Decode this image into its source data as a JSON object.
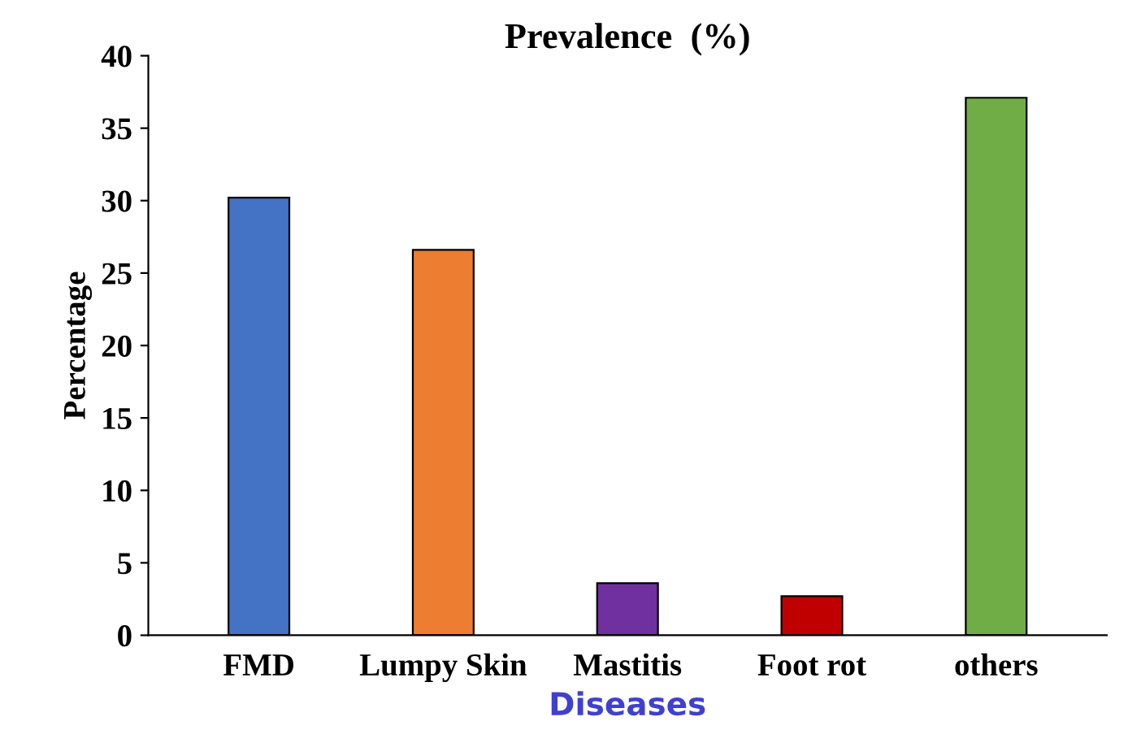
{
  "chart_data": {
    "type": "bar",
    "title": "Prevalence  (%)",
    "xlabel": "Diseases",
    "ylabel": "Percentage",
    "categories": [
      "FMD",
      "Lumpy Skin",
      "Mastitis",
      "Foot rot",
      "others"
    ],
    "values": [
      30.2,
      26.6,
      3.6,
      2.7,
      37.1
    ],
    "colors": [
      "#4472c4",
      "#ed7d31",
      "#7030a0",
      "#c00000",
      "#70ad47"
    ],
    "ylim": [
      0,
      40
    ],
    "yticks": [
      0,
      5,
      10,
      15,
      20,
      25,
      30,
      35,
      40
    ],
    "grid": false,
    "legend": false
  }
}
